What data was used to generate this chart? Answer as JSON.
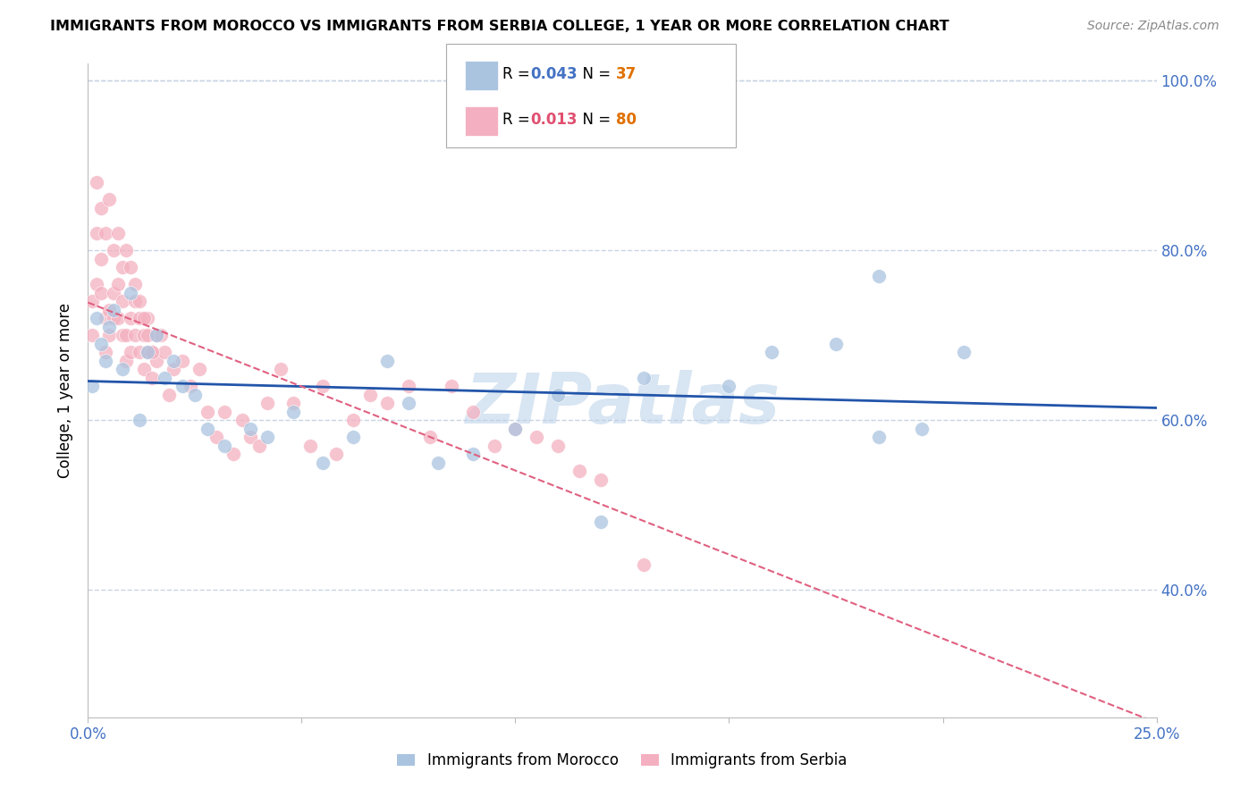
{
  "title": "IMMIGRANTS FROM MOROCCO VS IMMIGRANTS FROM SERBIA COLLEGE, 1 YEAR OR MORE CORRELATION CHART",
  "source": "Source: ZipAtlas.com",
  "ylabel": "College, 1 year or more",
  "x_min": 0.0,
  "x_max": 0.25,
  "y_min": 0.25,
  "y_max": 1.02,
  "y_ticks": [
    0.4,
    0.6,
    0.8,
    1.0
  ],
  "x_tick_positions": [
    0.0,
    0.05,
    0.1,
    0.15,
    0.2,
    0.25
  ],
  "x_tick_labels": [
    "0.0%",
    "",
    "",
    "",
    "",
    "25.0%"
  ],
  "morocco_color": "#aac4e0",
  "serbia_color": "#f4b0c0",
  "morocco_line_color": "#2255aa",
  "serbia_line_color": "#e06080",
  "watermark_color": "#b8d0e8",
  "grid_color": "#c8d4e4",
  "R_morocco": 0.043,
  "N_morocco": 37,
  "R_serbia": 0.013,
  "N_serbia": 80,
  "morocco_scatter_x": [
    0.001,
    0.002,
    0.003,
    0.004,
    0.005,
    0.006,
    0.008,
    0.01,
    0.012,
    0.014,
    0.016,
    0.018,
    0.02,
    0.022,
    0.025,
    0.028,
    0.032,
    0.038,
    0.042,
    0.048,
    0.055,
    0.062,
    0.07,
    0.075,
    0.082,
    0.09,
    0.1,
    0.11,
    0.12,
    0.13,
    0.15,
    0.16,
    0.175,
    0.185,
    0.195,
    0.205,
    0.185
  ],
  "morocco_scatter_y": [
    0.64,
    0.72,
    0.69,
    0.67,
    0.71,
    0.73,
    0.66,
    0.75,
    0.6,
    0.68,
    0.7,
    0.65,
    0.67,
    0.64,
    0.63,
    0.59,
    0.57,
    0.59,
    0.58,
    0.61,
    0.55,
    0.58,
    0.67,
    0.62,
    0.55,
    0.56,
    0.59,
    0.63,
    0.48,
    0.65,
    0.64,
    0.68,
    0.69,
    0.58,
    0.59,
    0.68,
    0.77
  ],
  "serbia_scatter_x": [
    0.001,
    0.001,
    0.002,
    0.002,
    0.003,
    0.003,
    0.004,
    0.004,
    0.005,
    0.005,
    0.006,
    0.006,
    0.007,
    0.007,
    0.008,
    0.008,
    0.009,
    0.009,
    0.01,
    0.01,
    0.011,
    0.011,
    0.012,
    0.012,
    0.013,
    0.013,
    0.014,
    0.014,
    0.015,
    0.015,
    0.016,
    0.016,
    0.017,
    0.018,
    0.019,
    0.02,
    0.022,
    0.024,
    0.026,
    0.028,
    0.03,
    0.032,
    0.034,
    0.036,
    0.038,
    0.04,
    0.042,
    0.045,
    0.048,
    0.052,
    0.055,
    0.058,
    0.062,
    0.066,
    0.07,
    0.075,
    0.08,
    0.085,
    0.09,
    0.095,
    0.1,
    0.105,
    0.11,
    0.115,
    0.12,
    0.13,
    0.002,
    0.003,
    0.004,
    0.005,
    0.006,
    0.007,
    0.008,
    0.009,
    0.01,
    0.011,
    0.012,
    0.013,
    0.014,
    0.015
  ],
  "serbia_scatter_y": [
    0.74,
    0.7,
    0.82,
    0.76,
    0.79,
    0.75,
    0.72,
    0.68,
    0.73,
    0.7,
    0.75,
    0.72,
    0.76,
    0.72,
    0.74,
    0.7,
    0.7,
    0.67,
    0.72,
    0.68,
    0.74,
    0.7,
    0.72,
    0.68,
    0.7,
    0.66,
    0.72,
    0.68,
    0.68,
    0.65,
    0.7,
    0.67,
    0.7,
    0.68,
    0.63,
    0.66,
    0.67,
    0.64,
    0.66,
    0.61,
    0.58,
    0.61,
    0.56,
    0.6,
    0.58,
    0.57,
    0.62,
    0.66,
    0.62,
    0.57,
    0.64,
    0.56,
    0.6,
    0.63,
    0.62,
    0.64,
    0.58,
    0.64,
    0.61,
    0.57,
    0.59,
    0.58,
    0.57,
    0.54,
    0.53,
    0.43,
    0.88,
    0.85,
    0.82,
    0.86,
    0.8,
    0.82,
    0.78,
    0.8,
    0.78,
    0.76,
    0.74,
    0.72,
    0.7,
    0.68
  ]
}
